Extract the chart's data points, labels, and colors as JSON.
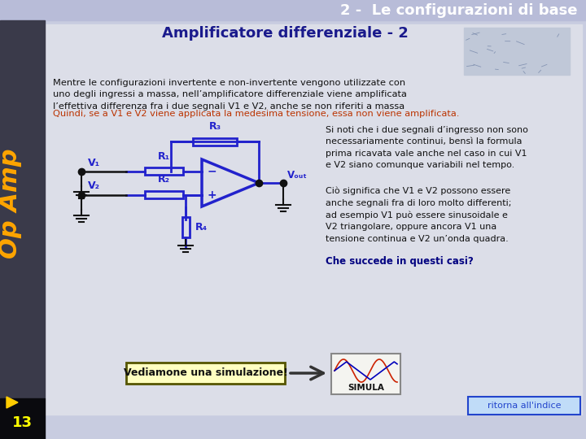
{
  "title": "2 -  Le configurazioni di base",
  "title_color": "#ffffff",
  "title_bg": "#b8bcd8",
  "subtitle": "Amplificatore differenziale - 2",
  "subtitle_color": "#1a1a8c",
  "main_bg": "#c8cce0",
  "content_bg": "#dcdee8",
  "left_bar_colors": [
    "#404050",
    "#2a2a38",
    "#1a1a28",
    "#0e0e18",
    "#050508"
  ],
  "opamp_text": "Op Amp",
  "opamp_color": "#ffa500",
  "page_number": "13",
  "page_num_color": "#ffff00",
  "ritorna_text": "ritorna all'indice",
  "ritorna_bg": "#c0dcf8",
  "ritorna_border": "#2244cc",
  "ritorna_text_color": "#2244cc",
  "text1": "Mentre le configurazioni invertente e non-invertente vengono utilizzate con\nuno degli ingressi a massa, nell’amplificatore differenziale viene amplificata\nl’effettiva differenza fra i due segnali V1 e V2, anche se non riferiti a massa",
  "text1_color": "#111111",
  "text2": "Quindi, se a V1 e V2 viene applicata la medesima tensione, essa non viene amplificata.",
  "text2_color": "#bb3300",
  "text3": "Si noti che i due segnali d’ingresso non sono\nnecessariamente continui, bensì la formula\nprima ricavata vale anche nel caso in cui V1\ne V2 siano comunque variabili nel tempo.",
  "text3_color": "#111111",
  "text4": "Ciò significa che V1 e V2 possono essere\nanche segnali fra di loro molto differenti;\nad esempio V1 può essere sinusoidale e\nV2 triangolare, oppure ancora V1 una\ntensione continua e V2 un’onda quadra.",
  "text4_color": "#111111",
  "text4b": "Che succede in questi casi?",
  "text4b_color": "#000080",
  "vediamone_text": "Vediamone una simulazione!",
  "vediamone_bg": "#ffffc0",
  "vediamone_border": "#888800",
  "simula_text": "SIMULA",
  "circuit_color": "#2222cc",
  "arrow_color": "#555555",
  "pcb_bg": "#c0c8d8"
}
